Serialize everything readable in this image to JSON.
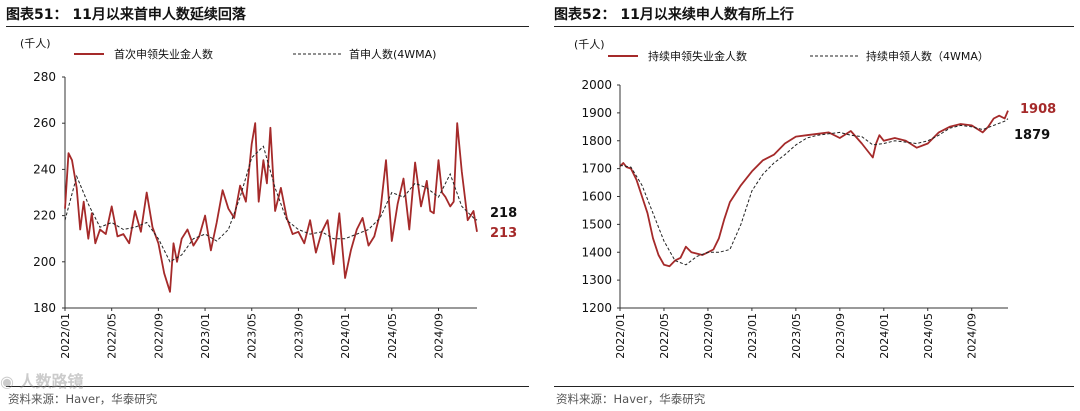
{
  "colors": {
    "series_solid": "#A52A2A",
    "series_dashed": "#222222",
    "value_dark": "#111111",
    "value_red": "#A52A2A"
  },
  "watermark": "人数路镜",
  "chart_data": [
    {
      "type": "line",
      "title": "图表51：  11月以来首申人数延续回落",
      "unit_label": "(千人)",
      "source": "资料来源：Haver，华泰研究",
      "ylim": [
        180,
        280
      ],
      "yticks": [
        180,
        200,
        220,
        240,
        260,
        280
      ],
      "x_tick_labels": [
        "2022/01",
        "2022/05",
        "2022/09",
        "2023/01",
        "2023/05",
        "2023/09",
        "2024/01",
        "2024/05",
        "2024/09"
      ],
      "x_range_months": [
        "2022/01",
        "2024/12"
      ],
      "legend": [
        "首次申领失业金人数",
        "首申人数(4WMA)"
      ],
      "end_labels": [
        {
          "text": "218",
          "color": "dark"
        },
        {
          "text": "213",
          "color": "red"
        }
      ],
      "series": [
        {
          "name": "首次申领失业金人数",
          "style": "solid",
          "x": [
            0,
            0.3,
            0.6,
            1,
            1.3,
            1.6,
            2,
            2.3,
            2.6,
            3,
            3.5,
            4,
            4.5,
            5,
            5.5,
            6,
            6.5,
            7,
            7.5,
            8,
            8.5,
            9,
            9.3,
            9.6,
            10,
            10.5,
            11,
            11.5,
            12,
            12.5,
            13,
            13.5,
            14,
            14.5,
            15,
            15.5,
            16,
            16.3,
            16.6,
            17,
            17.3,
            17.6,
            18,
            18.5,
            19,
            19.5,
            20,
            20.5,
            21,
            21.5,
            22,
            22.5,
            23,
            23.5,
            24,
            24.5,
            25,
            25.5,
            26,
            26.5,
            27,
            27.5,
            28,
            28.5,
            29,
            29.5,
            30,
            30.5,
            31,
            31.3,
            31.6,
            32,
            32.3,
            32.6,
            33,
            33.3,
            33.6,
            34,
            34.5,
            35,
            35.3
          ],
          "values": [
            223,
            247,
            244,
            232,
            214,
            226,
            210,
            221,
            208,
            214,
            212,
            224,
            211,
            212,
            208,
            222,
            213,
            230,
            215,
            208,
            195,
            187,
            208,
            200,
            210,
            214,
            207,
            211,
            220,
            205,
            217,
            231,
            223,
            219,
            233,
            226,
            251,
            260,
            226,
            244,
            234,
            258,
            222,
            232,
            219,
            212,
            213,
            208,
            218,
            204,
            213,
            218,
            199,
            221,
            193,
            205,
            214,
            219,
            207,
            211,
            221,
            244,
            209,
            225,
            236,
            214,
            243,
            224,
            235,
            222,
            221,
            244,
            230,
            228,
            224,
            226,
            260,
            239,
            218,
            222,
            213
          ]
        },
        {
          "name": "首申人数(4WMA)",
          "style": "dashed",
          "x": [
            0,
            1,
            2,
            3,
            4,
            5,
            6,
            7,
            8,
            9,
            10,
            11,
            12,
            13,
            14,
            15,
            16,
            17,
            18,
            19,
            20,
            21,
            22,
            23,
            24,
            25,
            26,
            27,
            28,
            29,
            30,
            31,
            32,
            33,
            34,
            35,
            35.3
          ],
          "values": [
            218,
            237,
            225,
            215,
            217,
            214,
            215,
            217,
            210,
            200,
            203,
            210,
            212,
            209,
            214,
            228,
            245,
            250,
            232,
            218,
            214,
            212,
            213,
            210,
            210,
            212,
            214,
            219,
            230,
            228,
            234,
            232,
            228,
            238,
            224,
            219,
            218
          ]
        }
      ]
    },
    {
      "type": "line",
      "title": "图表52：  11月以来续申人数有所上行",
      "unit_label": "(千人)",
      "source": "资料来源：Haver，华泰研究",
      "ylim": [
        1200,
        2000
      ],
      "yticks": [
        1200,
        1300,
        1400,
        1500,
        1600,
        1700,
        1800,
        1900,
        2000
      ],
      "x_tick_labels": [
        "2022/01",
        "2022/05",
        "2022/09",
        "2023/01",
        "2023/05",
        "2023/09",
        "2024/01",
        "2024/05",
        "2024/09"
      ],
      "x_range_months": [
        "2022/01",
        "2024/12"
      ],
      "legend": [
        "持续申领失业金人数",
        "持续申领人数（4WMA）"
      ],
      "end_labels": [
        {
          "text": "1908",
          "color": "red"
        },
        {
          "text": "1879",
          "color": "dark"
        }
      ],
      "series": [
        {
          "name": "持续申领失业金人数",
          "style": "solid",
          "x": [
            0,
            0.3,
            0.6,
            1,
            1.5,
            2,
            2.5,
            3,
            3.5,
            4,
            4.5,
            5,
            5.5,
            6,
            6.5,
            7,
            7.5,
            8,
            8.5,
            9,
            9.5,
            10,
            11,
            12,
            13,
            14,
            15,
            16,
            17,
            18,
            19,
            20,
            21,
            22,
            23,
            23.3,
            23.6,
            24,
            25,
            26,
            27,
            28,
            29,
            30,
            31,
            32,
            33,
            33.5,
            34,
            34.5,
            35,
            35.3
          ],
          "values": [
            1708,
            1720,
            1705,
            1700,
            1660,
            1600,
            1540,
            1450,
            1390,
            1355,
            1350,
            1370,
            1380,
            1420,
            1400,
            1395,
            1390,
            1400,
            1410,
            1450,
            1520,
            1580,
            1640,
            1690,
            1730,
            1750,
            1790,
            1815,
            1820,
            1825,
            1830,
            1810,
            1835,
            1790,
            1740,
            1790,
            1820,
            1800,
            1810,
            1800,
            1775,
            1790,
            1830,
            1850,
            1860,
            1855,
            1830,
            1850,
            1880,
            1890,
            1880,
            1908
          ]
        },
        {
          "name": "持续申领人数（4WMA）",
          "style": "dashed",
          "x": [
            0,
            1,
            2,
            3,
            4,
            5,
            6,
            7,
            8,
            9,
            10,
            11,
            12,
            13,
            14,
            15,
            16,
            17,
            18,
            19,
            20,
            21,
            22,
            23,
            24,
            25,
            26,
            27,
            28,
            29,
            30,
            31,
            32,
            33,
            34,
            35,
            35.3
          ],
          "values": [
            1712,
            1705,
            1640,
            1540,
            1440,
            1370,
            1355,
            1385,
            1400,
            1400,
            1410,
            1500,
            1620,
            1680,
            1720,
            1750,
            1785,
            1810,
            1820,
            1825,
            1830,
            1820,
            1815,
            1785,
            1790,
            1800,
            1795,
            1790,
            1800,
            1820,
            1845,
            1855,
            1850,
            1840,
            1855,
            1870,
            1879
          ]
        }
      ]
    }
  ]
}
